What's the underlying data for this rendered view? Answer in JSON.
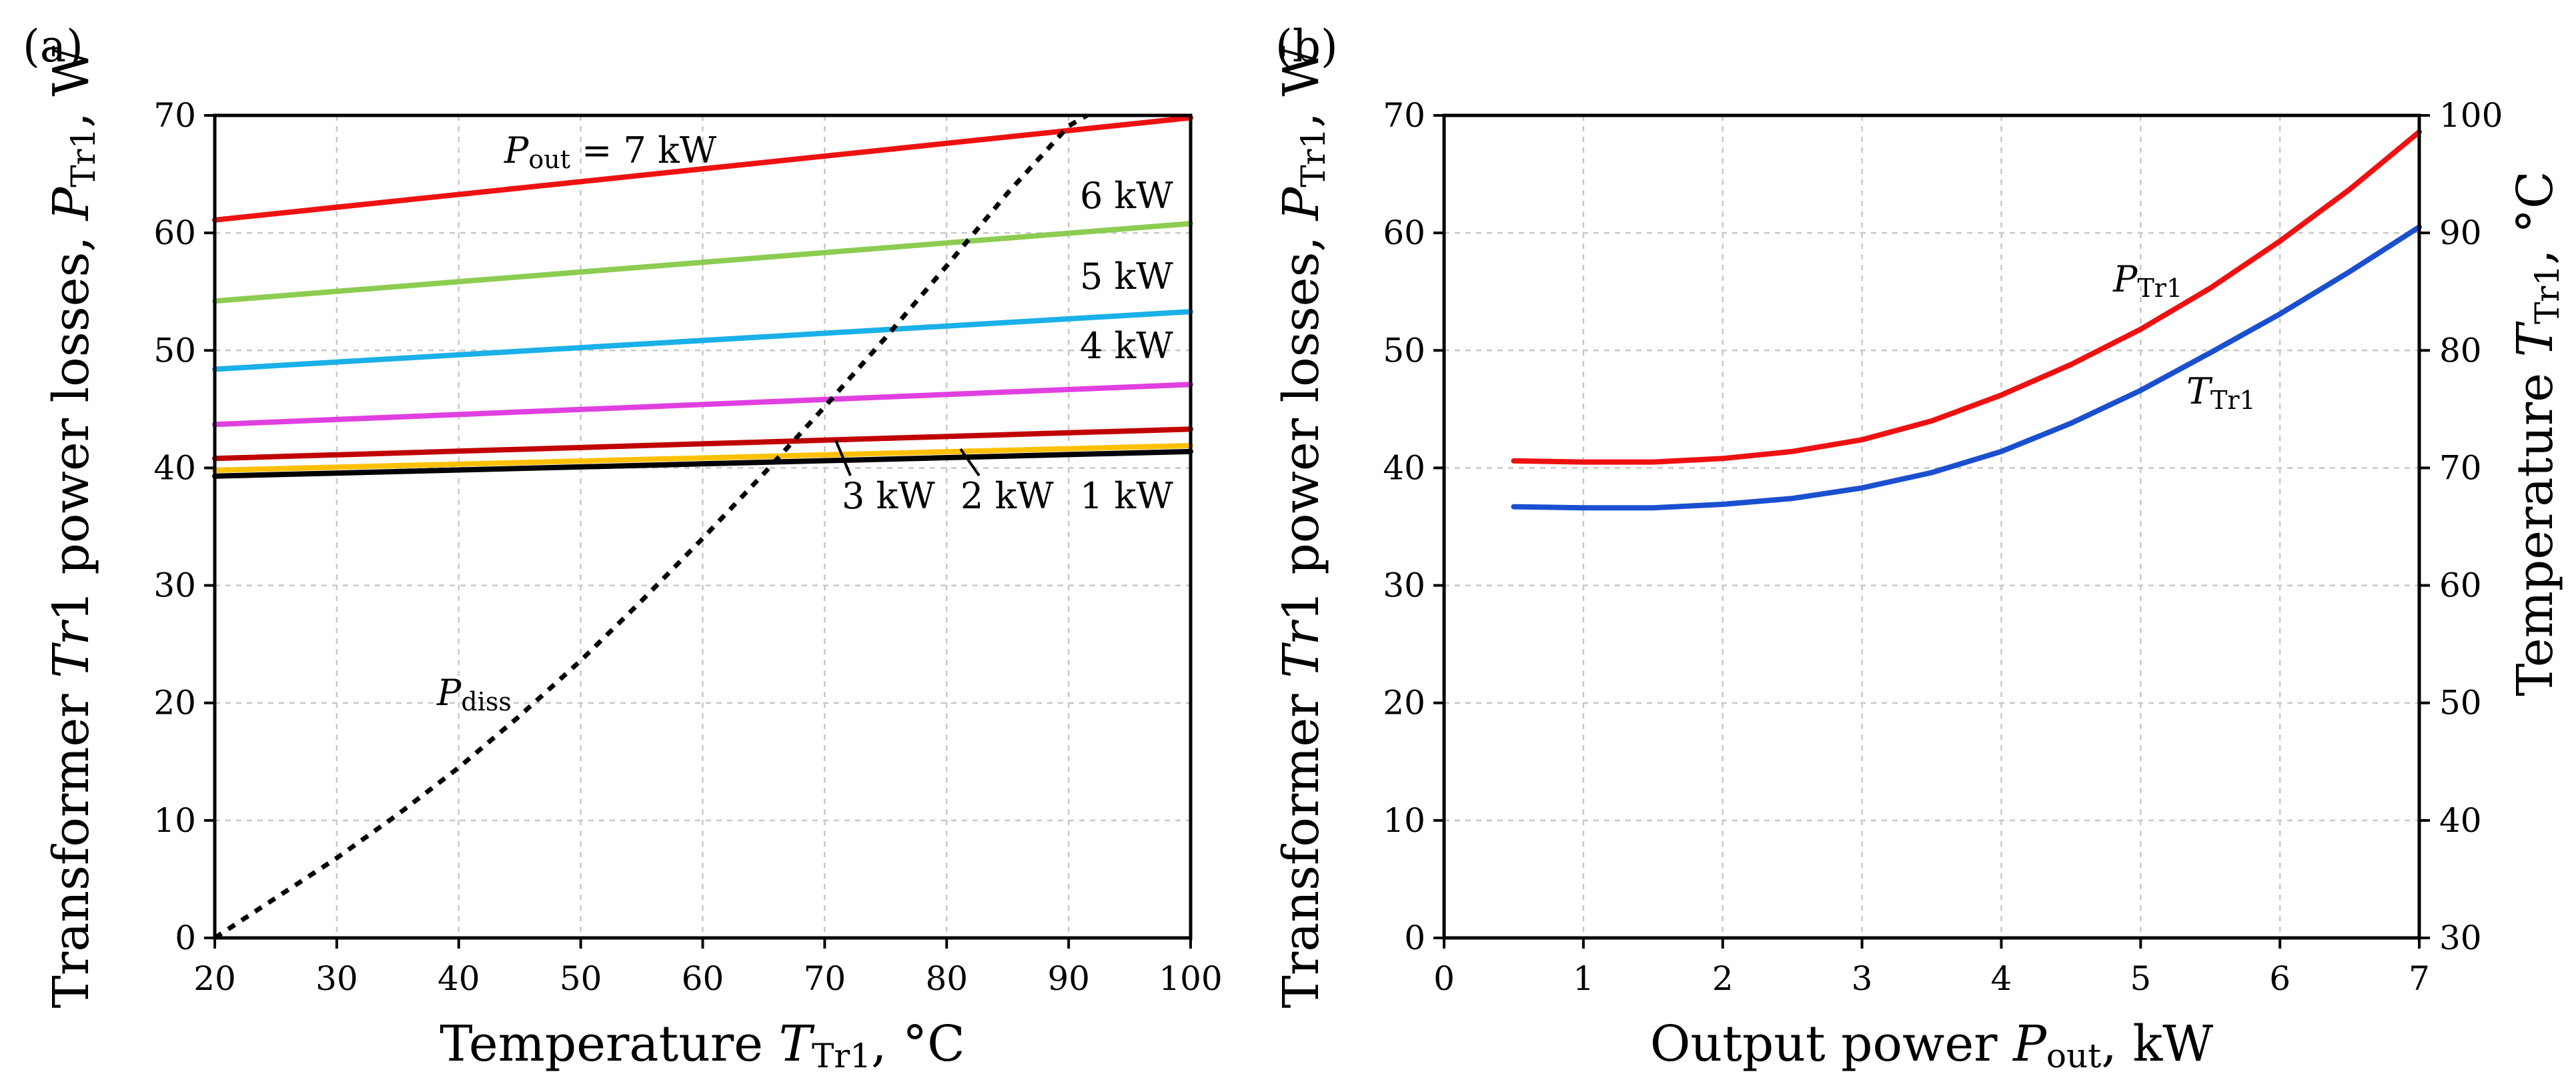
{
  "chart_data": [
    {
      "panel": "(a)",
      "type": "line",
      "xlabel": {
        "main": "Temperature ",
        "sym": "T",
        "sub": "Tr1",
        "unit": ", °C"
      },
      "ylabel": {
        "main": "Transformer ",
        "sym": "Tr",
        "symtail": "1",
        "mid": " power losses, ",
        "sym2": "P",
        "sub": "Tr1",
        "unit": ", W"
      },
      "xlim": [
        20,
        100
      ],
      "ylim": [
        0,
        70
      ],
      "xticks": [
        20,
        30,
        40,
        50,
        60,
        70,
        80,
        90,
        100
      ],
      "yticks": [
        0,
        10,
        20,
        30,
        40,
        50,
        60,
        70
      ],
      "grid": true,
      "series": [
        {
          "name": "1 kW",
          "color": "#000000",
          "x": [
            20,
            100
          ],
          "y": [
            39.3,
            41.4
          ]
        },
        {
          "name": "2 kW",
          "color": "#ffc000",
          "x": [
            20,
            100
          ],
          "y": [
            39.8,
            41.9
          ]
        },
        {
          "name": "3 kW",
          "color": "#c00000",
          "x": [
            20,
            100
          ],
          "y": [
            40.8,
            43.3
          ]
        },
        {
          "name": "4 kW",
          "color": "#e040e0",
          "x": [
            20,
            100
          ],
          "y": [
            43.7,
            47.1
          ]
        },
        {
          "name": "5 kW",
          "color": "#1ab0e8",
          "x": [
            20,
            100
          ],
          "y": [
            48.4,
            53.3
          ]
        },
        {
          "name": "6 kW",
          "color": "#8ccc50",
          "x": [
            20,
            100
          ],
          "y": [
            54.2,
            60.8
          ]
        },
        {
          "name": "7 kW",
          "color": "#ee1111",
          "x": [
            20,
            100
          ],
          "y": [
            61.1,
            69.8
          ]
        },
        {
          "name": "P_diss",
          "color": "#000000",
          "dashed": true,
          "x": [
            20,
            25,
            30,
            35,
            40,
            45,
            50,
            55,
            60,
            65,
            70,
            75,
            80,
            85,
            90,
            91.5
          ],
          "y": [
            0,
            3.4,
            6.8,
            10.5,
            14.5,
            18.9,
            23.6,
            28.7,
            34.0,
            39.5,
            45.2,
            51.1,
            57.2,
            63.4,
            69.1,
            70.0
          ]
        }
      ],
      "annotations": {
        "p7_sym": "P",
        "p7_sub": "out",
        "p7_rest": " = 7 kW",
        "p6": "6 kW",
        "p5": "5 kW",
        "p4": "4 kW",
        "p3": "3 kW",
        "p2": "2 kW",
        "p1": "1 kW",
        "pdiss_sym": "P",
        "pdiss_sub": "diss"
      }
    },
    {
      "panel": "(b)",
      "type": "line",
      "xlabel": {
        "main": "Output power ",
        "sym": "P",
        "sub": "out",
        "unit": ", kW"
      },
      "ylabel": {
        "main": "Transformer ",
        "sym": "Tr",
        "symtail": "1",
        "mid": " power losses, ",
        "sym2": "P",
        "sub": "Tr1",
        "unit": ", W"
      },
      "y2label": {
        "main": "Temperature ",
        "sym": "T",
        "sub": "Tr1",
        "unit": ", °C"
      },
      "xlim": [
        0,
        7
      ],
      "ylim": [
        0,
        70
      ],
      "y2lim": [
        30,
        100
      ],
      "xticks": [
        0,
        1,
        2,
        3,
        4,
        5,
        6,
        7
      ],
      "yticks": [
        0,
        10,
        20,
        30,
        40,
        50,
        60,
        70
      ],
      "y2ticks": [
        30,
        40,
        50,
        60,
        70,
        80,
        90,
        100
      ],
      "grid": true,
      "series": [
        {
          "name": "P_Tr1",
          "axis": "left",
          "color": "#ee1111",
          "x": [
            0.5,
            1.0,
            1.5,
            2.0,
            2.5,
            3.0,
            3.5,
            4.0,
            4.5,
            5.0,
            5.5,
            6.0,
            6.5,
            7.0
          ],
          "y": [
            40.6,
            40.5,
            40.5,
            40.8,
            41.4,
            42.4,
            44.0,
            46.2,
            48.8,
            51.8,
            55.3,
            59.3,
            63.7,
            68.6
          ]
        },
        {
          "name": "T_Tr1",
          "axis": "right",
          "color": "#1a4fcf",
          "x": [
            0.5,
            1.0,
            1.5,
            2.0,
            2.5,
            3.0,
            3.5,
            4.0,
            4.5,
            5.0,
            5.5,
            6.0,
            6.5,
            7.0
          ],
          "y": [
            66.7,
            66.6,
            66.6,
            66.9,
            67.4,
            68.3,
            69.6,
            71.4,
            73.8,
            76.6,
            79.8,
            83.1,
            86.7,
            90.5
          ]
        }
      ],
      "annotations": {
        "ptr_sym": "P",
        "ptr_sub": "Tr1",
        "ttr_sym": "T",
        "ttr_sub": "Tr1"
      }
    }
  ]
}
